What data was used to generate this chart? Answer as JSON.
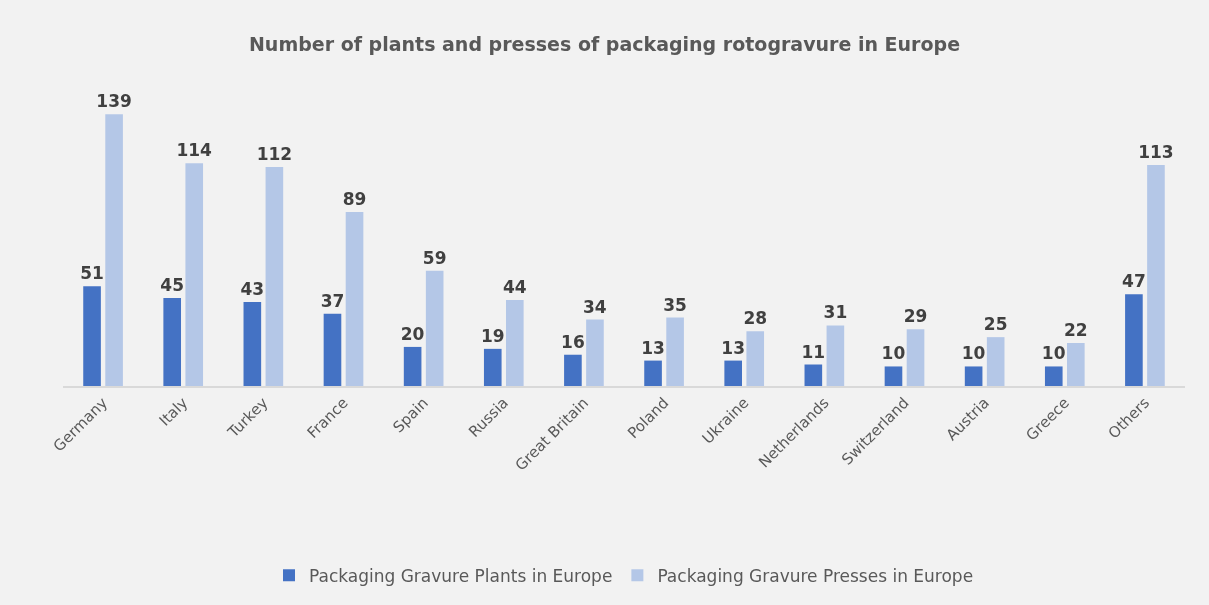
{
  "chart_data": {
    "type": "bar",
    "title": "Number of plants and presses of packaging rotogravure in Europe",
    "categories": [
      "Germany",
      "Italy",
      "Turkey",
      "France",
      "Spain",
      "Russia",
      "Great Britain",
      "Poland",
      "Ukraine",
      "Netherlands",
      "Switzerland",
      "Austria",
      "Greece",
      "Others"
    ],
    "series": [
      {
        "name": "Packaging Gravure Plants in Europe",
        "color": "#4472c4",
        "values": [
          51,
          45,
          43,
          37,
          20,
          19,
          16,
          13,
          13,
          11,
          10,
          10,
          10,
          47
        ]
      },
      {
        "name": "Packaging Gravure Presses in Europe",
        "color": "#b4c7e7",
        "values": [
          139,
          114,
          112,
          89,
          59,
          44,
          34,
          35,
          28,
          31,
          29,
          25,
          22,
          113
        ]
      }
    ],
    "data_labels": true,
    "grid": false,
    "legend": "bottom",
    "tick_labels": "x"
  }
}
